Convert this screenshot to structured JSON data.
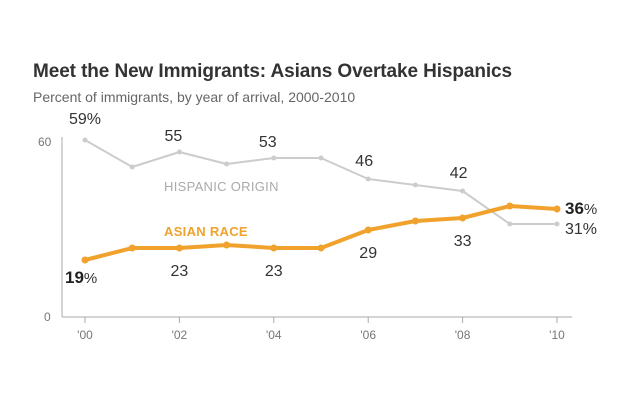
{
  "chart_data": {
    "type": "line",
    "title": "Meet the New Immigrants: Asians Overtake Hispanics",
    "subtitle": "Percent of immigrants, by year of arrival, 2000-2010",
    "x": [
      2000,
      2001,
      2002,
      2003,
      2004,
      2005,
      2006,
      2007,
      2008,
      2009,
      2010
    ],
    "xtick_labels": [
      "'00",
      "'02",
      "'04",
      "'06",
      "'08",
      "'10"
    ],
    "ytick_labels": [
      "0",
      "60"
    ],
    "ylim": [
      0,
      60
    ],
    "series": [
      {
        "name": "HISPANIC ORIGIN",
        "color": "#cccccc",
        "values": [
          59,
          50,
          55,
          51,
          53,
          53,
          46,
          44,
          42,
          31,
          31
        ],
        "labels": [
          "59%",
          "",
          "55",
          "",
          "53",
          "",
          "46",
          "",
          "42",
          "",
          "31%"
        ]
      },
      {
        "name": "ASIAN RACE",
        "color": "#f0a22c",
        "values": [
          19,
          23,
          23,
          24,
          23,
          23,
          29,
          32,
          33,
          37,
          36
        ],
        "labels": [
          "19",
          "",
          "23",
          "",
          "23",
          "",
          "29",
          "",
          "33",
          "",
          "36"
        ]
      }
    ],
    "percent_sign": "%"
  }
}
